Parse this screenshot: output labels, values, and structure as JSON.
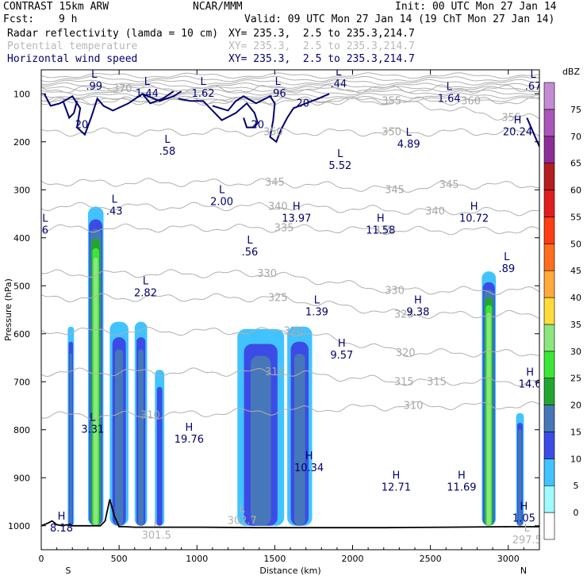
{
  "header": {
    "model": "CONTRAST 15km ARW",
    "org": "NCAR/MMM",
    "init": "Init: 00 UTC Mon 27 Jan 14",
    "fcst_label": "Fcst:",
    "fcst_value": "9 h",
    "valid": "Valid: 09 UTC Mon 27 Jan 14 (19 ChT Mon 27 Jan 14)",
    "fields": [
      {
        "name": "Radar reflectivity (lamda = 10 cm)",
        "xy": "XY= 235.3,  2.5 to 235.3,214.7",
        "color": "#000000"
      },
      {
        "name": "Potential temperature",
        "xy": "XY= 235.3,  2.5 to 235.3,214.7",
        "color": "#b8b8b8"
      },
      {
        "name": "Horizontal wind speed",
        "xy": "XY= 235.3,  2.5 to 235.3,214.7",
        "color": "#000070"
      }
    ]
  },
  "chart_data": {
    "type": "contour",
    "xlabel": "Distance (km)",
    "ylabel": "Pressure (hPa)",
    "xlim": [
      0,
      3200
    ],
    "ylim": [
      1050,
      50
    ],
    "x_ticks": [
      0,
      500,
      1000,
      1500,
      2000,
      2500,
      3000
    ],
    "y_ticks": [
      100,
      200,
      300,
      400,
      500,
      600,
      700,
      800,
      900,
      1000
    ],
    "endpoints": {
      "left": "S",
      "right": "N"
    },
    "colorbar": {
      "unit": "dBZ",
      "levels": [
        0,
        5,
        10,
        15,
        20,
        25,
        30,
        35,
        40,
        45,
        50,
        55,
        60,
        65,
        70,
        75
      ],
      "colors": [
        "#ffffff",
        "#9ffbff",
        "#41c3ff",
        "#3c4be6",
        "#4677b9",
        "#23a532",
        "#3ce636",
        "#8ce67d",
        "#ffdc3c",
        "#ffaa3c",
        "#ff6e1e",
        "#ff3c14",
        "#e11e1e",
        "#b41e1e",
        "#8c2d96",
        "#aa55b9",
        "#c38cd2"
      ]
    },
    "reflectivity_cells": [
      {
        "x": [
          170,
          210
        ],
        "p_top": 585,
        "p_bot": 1000,
        "max_dbz": 15
      },
      {
        "x": [
          300,
          400
        ],
        "p_top": 335,
        "p_bot": 1000,
        "max_dbz": 30
      },
      {
        "x": [
          440,
          560
        ],
        "p_top": 575,
        "p_bot": 1000,
        "max_dbz": 15
      },
      {
        "x": [
          600,
          680
        ],
        "p_top": 575,
        "p_bot": 1000,
        "max_dbz": 15
      },
      {
        "x": [
          730,
          790
        ],
        "p_top": 675,
        "p_bot": 1000,
        "max_dbz": 10
      },
      {
        "x": [
          1260,
          1560
        ],
        "p_top": 590,
        "p_bot": 1000,
        "max_dbz": 15
      },
      {
        "x": [
          1580,
          1740
        ],
        "p_top": 585,
        "p_bot": 1000,
        "max_dbz": 15
      },
      {
        "x": [
          2830,
          2920
        ],
        "p_top": 470,
        "p_bot": 1000,
        "max_dbz": 30
      },
      {
        "x": [
          3050,
          3100
        ],
        "p_top": 765,
        "p_bot": 1000,
        "max_dbz": 15
      }
    ],
    "theta_contour_labels": [
      {
        "text": "370",
        "x": 520,
        "p": 90
      },
      {
        "text": "355",
        "x": 2250,
        "p": 115
      },
      {
        "text": "360",
        "x": 2760,
        "p": 115
      },
      {
        "text": "355",
        "x": 3020,
        "p": 150
      },
      {
        "text": "350",
        "x": 1490,
        "p": 180
      },
      {
        "text": "350",
        "x": 2250,
        "p": 180
      },
      {
        "text": "345",
        "x": 1500,
        "p": 285
      },
      {
        "text": "345",
        "x": 2270,
        "p": 300
      },
      {
        "text": "345",
        "x": 2620,
        "p": 290
      },
      {
        "text": "340",
        "x": 1520,
        "p": 335
      },
      {
        "text": "340",
        "x": 2530,
        "p": 345
      },
      {
        "text": "335",
        "x": 1560,
        "p": 380
      },
      {
        "text": "335",
        "x": 2200,
        "p": 385
      },
      {
        "text": "330",
        "x": 1450,
        "p": 475
      },
      {
        "text": "330",
        "x": 2270,
        "p": 510
      },
      {
        "text": "325",
        "x": 1520,
        "p": 525
      },
      {
        "text": "325",
        "x": 2330,
        "p": 560
      },
      {
        "text": "320",
        "x": 1620,
        "p": 595
      },
      {
        "text": "320",
        "x": 2340,
        "p": 640
      },
      {
        "text": "315",
        "x": 1500,
        "p": 680
      },
      {
        "text": "315",
        "x": 2330,
        "p": 700
      },
      {
        "text": "315",
        "x": 2540,
        "p": 700
      },
      {
        "text": "310",
        "x": 700,
        "p": 770
      },
      {
        "text": "310",
        "x": 2390,
        "p": 750
      }
    ],
    "wind_contour_labels": [
      {
        "text": "20",
        "x": 260,
        "p": 165
      },
      {
        "text": "20",
        "x": 1680,
        "p": 120
      },
      {
        "text": "20",
        "x": 1390,
        "p": 165
      }
    ],
    "extrema": [
      {
        "type": "L",
        "value": ".99",
        "x": 340,
        "p": 80
      },
      {
        "type": "L",
        "value": "1.44",
        "x": 680,
        "p": 95
      },
      {
        "type": "L",
        "value": "1.62",
        "x": 1040,
        "p": 95
      },
      {
        "type": "L",
        "value": ".96",
        "x": 1520,
        "p": 95
      },
      {
        "type": "L",
        "value": ".44",
        "x": 1910,
        "p": 75
      },
      {
        "type": "L",
        "value": "1.64",
        "x": 2620,
        "p": 105
      },
      {
        "type": "L",
        "value": ".67",
        "x": 3160,
        "p": 80
      },
      {
        "type": "H",
        "value": "20.24",
        "x": 3060,
        "p": 175
      },
      {
        "type": "L",
        "value": ".58",
        "x": 810,
        "p": 215
      },
      {
        "type": "L",
        "value": "4.89",
        "x": 2360,
        "p": 200
      },
      {
        "type": "L",
        "value": "5.52",
        "x": 1920,
        "p": 245
      },
      {
        "type": "L",
        "value": "2.00",
        "x": 1160,
        "p": 320
      },
      {
        "type": "L",
        "value": ".43",
        "x": 470,
        "p": 340
      },
      {
        "type": "H",
        "value": "13.97",
        "x": 1640,
        "p": 355
      },
      {
        "type": "H",
        "value": "11.58",
        "x": 2180,
        "p": 380
      },
      {
        "type": "H",
        "value": "10.72",
        "x": 2780,
        "p": 355
      },
      {
        "type": "L",
        "value": "6",
        "x": 25,
        "p": 380
      },
      {
        "type": "L",
        "value": ".56",
        "x": 1340,
        "p": 425
      },
      {
        "type": "L",
        "value": ".89",
        "x": 2990,
        "p": 460
      },
      {
        "type": "L",
        "value": "2.82",
        "x": 670,
        "p": 510
      },
      {
        "type": "L",
        "value": "1.39",
        "x": 1770,
        "p": 550
      },
      {
        "type": "H",
        "value": "9.38",
        "x": 2420,
        "p": 550
      },
      {
        "type": "H",
        "value": "9.57",
        "x": 1930,
        "p": 640
      },
      {
        "type": "H",
        "value": "14.6",
        "x": 3140,
        "p": 700
      },
      {
        "type": "L",
        "value": "3.31",
        "x": 330,
        "p": 795
      },
      {
        "type": "H",
        "value": "19.76",
        "x": 950,
        "p": 815
      },
      {
        "type": "H",
        "value": "10.34",
        "x": 1720,
        "p": 875
      },
      {
        "type": "H",
        "value": "12.71",
        "x": 2280,
        "p": 915
      },
      {
        "type": "H",
        "value": "11.69",
        "x": 2700,
        "p": 915
      },
      {
        "type": "L",
        "value": "302.7",
        "x": 1290,
        "p": 985
      },
      {
        "type": "H",
        "value": "8.18",
        "x": 130,
        "p": 1000
      },
      {
        "type": "H",
        "value": "1.05",
        "x": 3100,
        "p": 980
      },
      {
        "type": "L",
        "value": "301.5",
        "x": 740,
        "p": 1015
      },
      {
        "type": "L",
        "value": "297.5",
        "x": 3120,
        "p": 1025
      }
    ],
    "terrain_surface": {
      "x": [
        0,
        40,
        70,
        100,
        140,
        160,
        200,
        300,
        380,
        410,
        440,
        470,
        500,
        540,
        600,
        800,
        1000,
        1400,
        1800,
        2200,
        2600,
        3000,
        3200
      ],
      "p": [
        1000,
        995,
        990,
        998,
        1000,
        998,
        1000,
        1000,
        1000,
        990,
        945,
        980,
        1002,
        1002,
        1003,
        1003,
        1003,
        1004,
        1004,
        1004,
        1003,
        1002,
        1002
      ]
    }
  }
}
